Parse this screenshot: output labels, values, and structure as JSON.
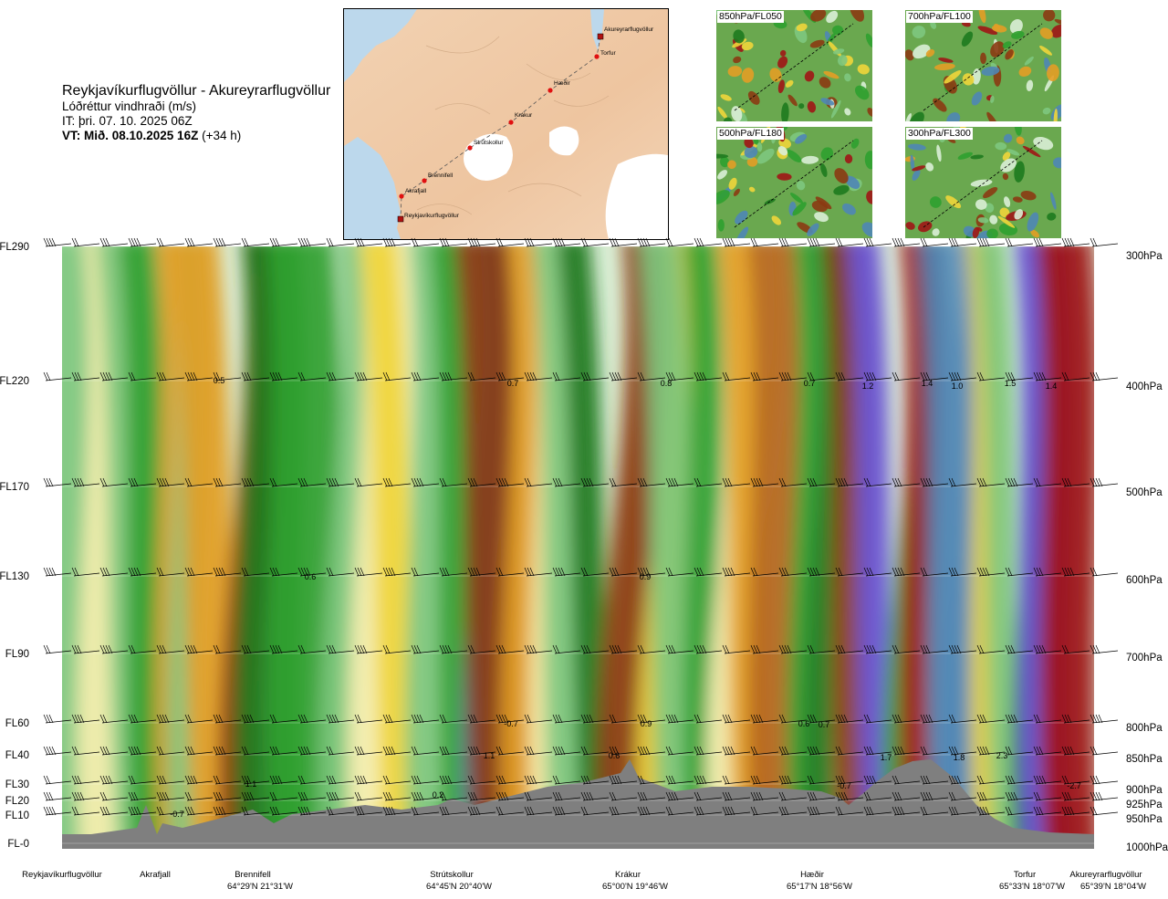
{
  "title": {
    "route": "Reykjavíkurflugvöllur - Akureyrarflugvöllur",
    "parameter": "Lóðréttur vindhraði (m/s)",
    "issue_time": "IT: þri. 07. 10. 2025 06Z",
    "valid_time_bold": "VT: Mið. 08.10.2025 16Z",
    "valid_time_offset": "(+34 h)"
  },
  "map": {
    "waypoints": [
      "Akureyrarflugvöllur",
      "Torfur",
      "Hæðir",
      "Krákur",
      "Strútskollur",
      "Brennifell",
      "Akrafjall",
      "Reykjavíkurflugvöllur"
    ]
  },
  "thumbnails": [
    {
      "label": "850hPa/FL050"
    },
    {
      "label": "700hPa/FL100"
    },
    {
      "label": "500hPa/FL180"
    },
    {
      "label": "300hPa/FL300"
    }
  ],
  "colors": {
    "terrain": "#7f7f7f",
    "strong_up": "#6a55d6",
    "mid_up": "#4f86b5",
    "up1": "#1e7a1e",
    "up2": "#2fa02f",
    "up3": "#7ec77e",
    "up4": "#b9ddb4",
    "near_zero": "#daeed6",
    "down1": "#f7efb0",
    "down2": "#f0d53a",
    "down3": "#e39d25",
    "down4": "#b5651d",
    "strong_down": "#8b3a12",
    "extreme_down": "#a01515"
  },
  "chart_data": {
    "type": "heatmap",
    "title": "Lóðréttur vindhraði (m/s)",
    "x_locations": [
      {
        "name": "Reykjavíkurflugvöllur",
        "coord": ""
      },
      {
        "name": "Akrafjall",
        "coord": ""
      },
      {
        "name": "Brennifell",
        "coord": "64°29'N 21°31'W"
      },
      {
        "name": "Strútskollur",
        "coord": "64°45'N 20°40'W"
      },
      {
        "name": "Krákur",
        "coord": "65°00'N 19°46'W"
      },
      {
        "name": "Hæðir",
        "coord": "65°17'N 18°56'W"
      },
      {
        "name": "Torfur",
        "coord": "65°33'N 18°07'W"
      },
      {
        "name": "Akureyrarflugvöllur",
        "coord": "65°39'N 18°04'W"
      }
    ],
    "y_levels": [
      {
        "fl": "FL290",
        "hpa": "300hPa"
      },
      {
        "fl": "FL220",
        "hpa": "400hPa"
      },
      {
        "fl": "FL170",
        "hpa": "500hPa"
      },
      {
        "fl": "FL130",
        "hpa": "600hPa"
      },
      {
        "fl": "FL90",
        "hpa": "700hPa"
      },
      {
        "fl": "FL60",
        "hpa": "800hPa"
      },
      {
        "fl": "FL40",
        "hpa": "850hPa"
      },
      {
        "fl": "FL30",
        "hpa": "900hPa"
      },
      {
        "fl": "FL20",
        "hpa": "925hPa"
      },
      {
        "fl": "FL10",
        "hpa": "950hPa"
      },
      {
        "fl": "FL-0",
        "hpa": "1000hPa"
      }
    ],
    "annotations": [
      "-0.7",
      "0.5",
      "0.7",
      "0.8",
      "0.7",
      "1.2",
      "1.4",
      "1.0",
      "1.5",
      "1.4",
      "0.6",
      "0.9",
      "-0.7",
      "1.1",
      "0.9",
      "0.6",
      "0.7",
      "1.7",
      "1.8",
      "2.3",
      "-2.7",
      "1.1",
      "0.2",
      "-0.7",
      "0.6"
    ]
  }
}
